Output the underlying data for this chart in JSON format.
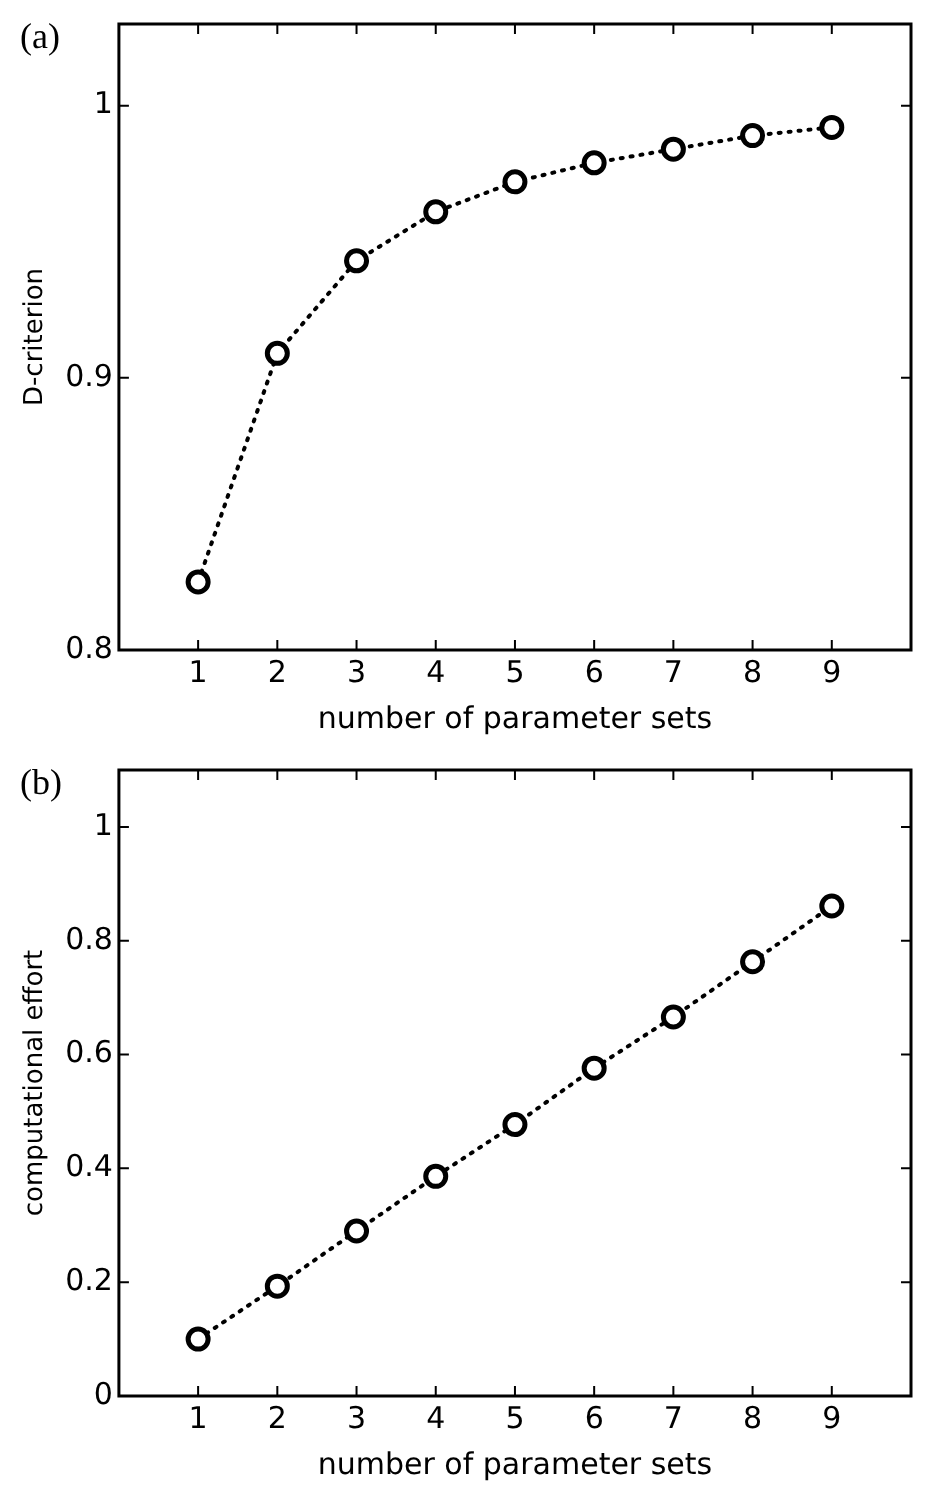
{
  "chart_data": [
    {
      "type": "line",
      "xlabel": "number of parameter sets",
      "ylabel": "D-criterion",
      "annotations": [
        "(a)"
      ],
      "x": [
        1,
        2,
        3,
        4,
        5,
        6,
        7,
        8,
        9
      ],
      "series": [
        {
          "color": "#000000",
          "values": [
            0.825,
            0.909,
            0.943,
            0.961,
            0.972,
            0.979,
            0.984,
            0.989,
            0.992
          ]
        }
      ],
      "xlim": [
        0,
        10
      ],
      "xticks": [
        1,
        2,
        3,
        4,
        5,
        6,
        7,
        8,
        9
      ],
      "ylim": [
        0.8,
        1.03
      ],
      "yticks": [
        0.8,
        0.9,
        1
      ],
      "grid": false,
      "legend": false,
      "marker": "circle",
      "line_style": "dotted"
    },
    {
      "type": "line",
      "xlabel": "number of parameter sets",
      "ylabel": "computational effort",
      "annotations": [
        "(b)"
      ],
      "x": [
        1,
        2,
        3,
        4,
        5,
        6,
        7,
        8,
        9
      ],
      "series": [
        {
          "color": "#000000",
          "values": [
            0.1,
            0.193,
            0.29,
            0.386,
            0.477,
            0.576,
            0.666,
            0.763,
            0.861
          ]
        }
      ],
      "xlim": [
        0,
        10
      ],
      "xticks": [
        1,
        2,
        3,
        4,
        5,
        6,
        7,
        8,
        9
      ],
      "ylim": [
        0,
        1.1
      ],
      "yticks": [
        0,
        0.2,
        0.4,
        0.6,
        0.8,
        1
      ],
      "grid": false,
      "legend": false,
      "marker": "circle",
      "line_style": "dotted"
    }
  ]
}
